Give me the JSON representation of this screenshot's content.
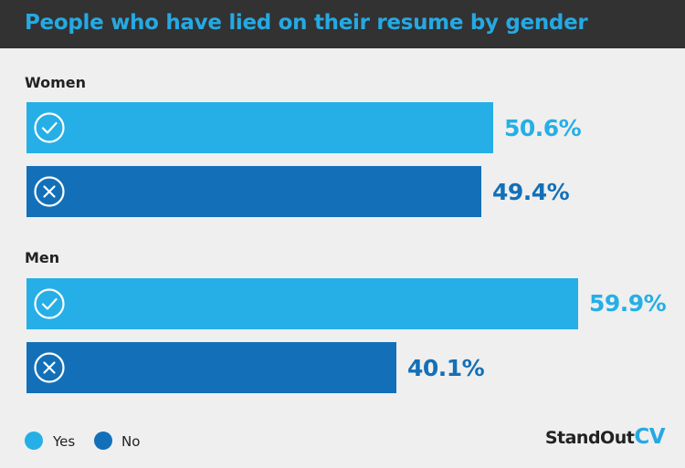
{
  "chart_data": {
    "type": "bar",
    "orientation": "horizontal",
    "title": "People who have lied on their resume by gender",
    "categories": [
      "Women",
      "Men"
    ],
    "series": [
      {
        "name": "Yes",
        "values": [
          50.6,
          59.9
        ],
        "labels": [
          "50.6%",
          "59.9%"
        ],
        "icon": "check-circle-icon"
      },
      {
        "name": "No",
        "values": [
          49.4,
          40.1
        ],
        "labels": [
          "49.4%",
          "40.1%"
        ],
        "icon": "x-circle-icon"
      }
    ],
    "unit": "%",
    "xlim": [
      0,
      100
    ],
    "grid": false,
    "legend_position": "bottom-left"
  },
  "colors": {
    "yes": "#25afe6",
    "no": "#1370b8",
    "header_bg": "#323232",
    "title": "#25a9e3",
    "background": "#efefef"
  },
  "brand": {
    "name": "StandOut",
    "suffix": "CV"
  }
}
